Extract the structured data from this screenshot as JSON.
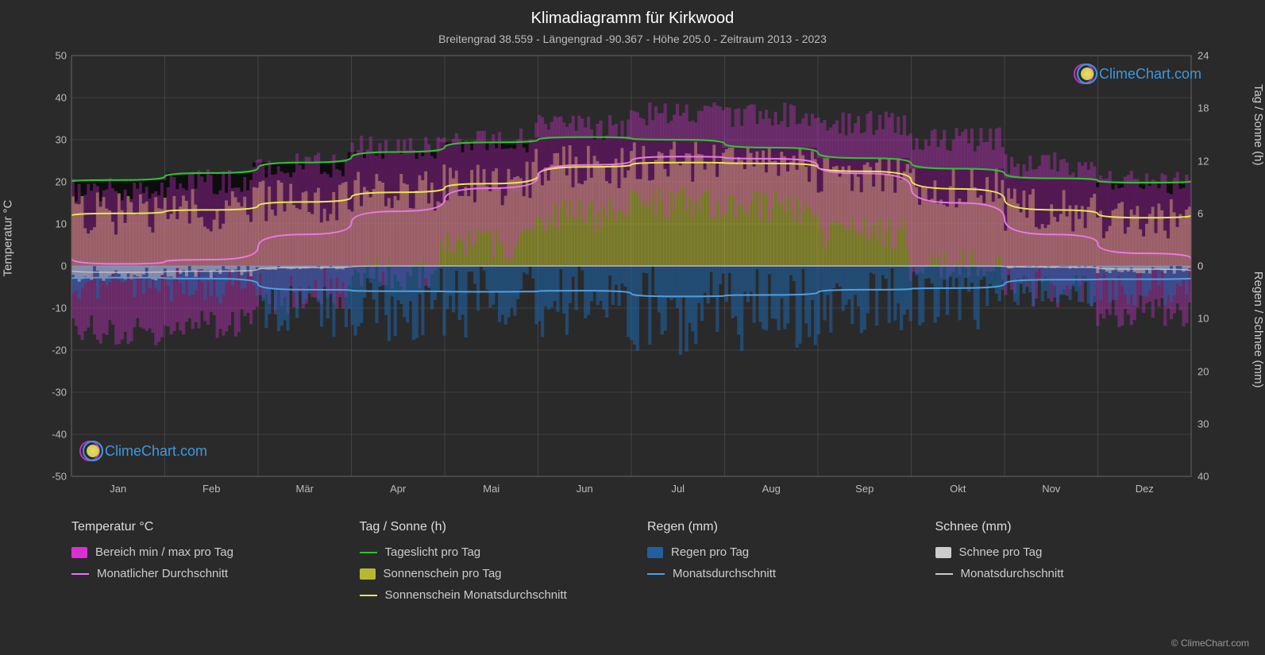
{
  "title": "Klimadiagramm für Kirkwood",
  "subtitle": "Breitengrad 38.559 - Längengrad -90.367 - Höhe 205.0 - Zeitraum 2013 - 2023",
  "axis_labels": {
    "left": "Temperatur °C",
    "right_top": "Tag / Sonne (h)",
    "right_bottom": "Regen / Schnee (mm)"
  },
  "left_axis": {
    "min": -50,
    "max": 50,
    "step": 10,
    "ticks": [
      -50,
      -40,
      -30,
      -20,
      -10,
      0,
      10,
      20,
      30,
      40,
      50
    ]
  },
  "right_top_axis": {
    "min": 0,
    "max": 24,
    "step": 6,
    "ticks": [
      0,
      6,
      12,
      18,
      24
    ]
  },
  "right_bottom_axis": {
    "min": 0,
    "max": 40,
    "step": 10,
    "ticks": [
      0,
      10,
      20,
      30,
      40
    ]
  },
  "months": [
    "Jan",
    "Feb",
    "Mär",
    "Apr",
    "Mai",
    "Jun",
    "Jul",
    "Aug",
    "Sep",
    "Okt",
    "Nov",
    "Dez"
  ],
  "colors": {
    "background": "#2a2a2a",
    "plot_bg": "#2a2a2a",
    "grid": "#555555",
    "temp_range": "#d830d8",
    "temp_avg": "#e878e8",
    "daylight": "#30c030",
    "sunshine_bar": "#b8b830",
    "sunshine_avg": "#e8e850",
    "rain_bar": "#2060a0",
    "rain_avg": "#50a0e0",
    "snow_bar": "#cccccc",
    "snow_avg": "#cccccc",
    "text": "#cccccc",
    "title": "#ffffff",
    "logo_text": "#3b99e0"
  },
  "series": {
    "daylight_h": [
      9.8,
      10.6,
      11.8,
      13.0,
      14.1,
      14.7,
      14.4,
      13.5,
      12.3,
      11.1,
      10.0,
      9.5
    ],
    "sunshine_h": [
      6.0,
      6.4,
      7.3,
      8.4,
      9.4,
      11.3,
      11.8,
      11.7,
      10.8,
      8.8,
      6.4,
      5.5
    ],
    "temp_avg_c": [
      0.5,
      1.5,
      7.5,
      13.0,
      18.5,
      24.0,
      26.0,
      25.5,
      22.0,
      15.0,
      7.5,
      3.0
    ],
    "temp_min_c": [
      -15,
      -14,
      -8,
      -2,
      5,
      12,
      15,
      14,
      8,
      0,
      -6,
      -11
    ],
    "temp_max_c": [
      18,
      20,
      24,
      28,
      30,
      33,
      36,
      36,
      34,
      30,
      24,
      20
    ],
    "rain_avg_mm": [
      2.2,
      2.4,
      4.5,
      4.8,
      4.9,
      4.7,
      5.8,
      5.5,
      4.5,
      4.2,
      2.6,
      2.5
    ],
    "snow_avg_mm": [
      1.2,
      1.0,
      0.3,
      0,
      0,
      0,
      0,
      0,
      0,
      0,
      0.2,
      0.6
    ]
  },
  "legend": {
    "temp": {
      "header": "Temperatur °C",
      "range": "Bereich min / max pro Tag",
      "avg": "Monatlicher Durchschnitt"
    },
    "sun": {
      "header": "Tag / Sonne (h)",
      "daylight": "Tageslicht pro Tag",
      "sunshine": "Sonnenschein pro Tag",
      "sunshine_avg": "Sonnenschein Monatsdurchschnitt"
    },
    "rain": {
      "header": "Regen (mm)",
      "day": "Regen pro Tag",
      "avg": "Monatsdurchschnitt"
    },
    "snow": {
      "header": "Schnee (mm)",
      "day": "Schnee pro Tag",
      "avg": "Monatsdurchschnitt"
    }
  },
  "logo_text": "ClimeChart.com",
  "copyright": "© ClimeChart.com"
}
